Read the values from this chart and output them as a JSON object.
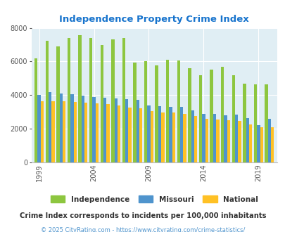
{
  "title": "Independence Property Crime Index",
  "title_color": "#1874CD",
  "years": [
    1999,
    2000,
    2001,
    2002,
    2003,
    2004,
    2005,
    2006,
    2007,
    2008,
    2009,
    2010,
    2011,
    2012,
    2013,
    2014,
    2015,
    2016,
    2017,
    2018,
    2019,
    2020
  ],
  "independence": [
    6200,
    7250,
    6900,
    7400,
    7580,
    7380,
    7000,
    7300,
    7380,
    5950,
    6000,
    5750,
    6100,
    6050,
    5600,
    5200,
    5500,
    5700,
    5200,
    4700,
    4650,
    4650
  ],
  "missouri": [
    4000,
    4200,
    4100,
    4050,
    3950,
    3900,
    3850,
    3800,
    3750,
    3700,
    3400,
    3350,
    3300,
    3300,
    3100,
    2900,
    2900,
    2800,
    2850,
    2650,
    2200,
    2600
  ],
  "national": [
    3650,
    3650,
    3650,
    3600,
    3550,
    3500,
    3450,
    3400,
    3250,
    3200,
    3050,
    2950,
    2950,
    2900,
    2750,
    2600,
    2550,
    2500,
    2450,
    2250,
    2100,
    2100
  ],
  "indep_color": "#8DC63F",
  "missouri_color": "#4F94CD",
  "national_color": "#FFC125",
  "bg_color": "#E0EEF4",
  "ylim": [
    0,
    8000
  ],
  "yticks": [
    0,
    2000,
    4000,
    6000,
    8000
  ],
  "xtick_years": [
    1999,
    2004,
    2009,
    2014,
    2019
  ],
  "legend_labels": [
    "Independence",
    "Missouri",
    "National"
  ],
  "subtitle": "Crime Index corresponds to incidents per 100,000 inhabitants",
  "subtitle_color": "#333333",
  "copyright": "© 2025 CityRating.com - https://www.cityrating.com/crime-statistics/",
  "copyright_color": "#4F94CD",
  "grid_color": "#FFFFFF",
  "bar_width": 0.28
}
